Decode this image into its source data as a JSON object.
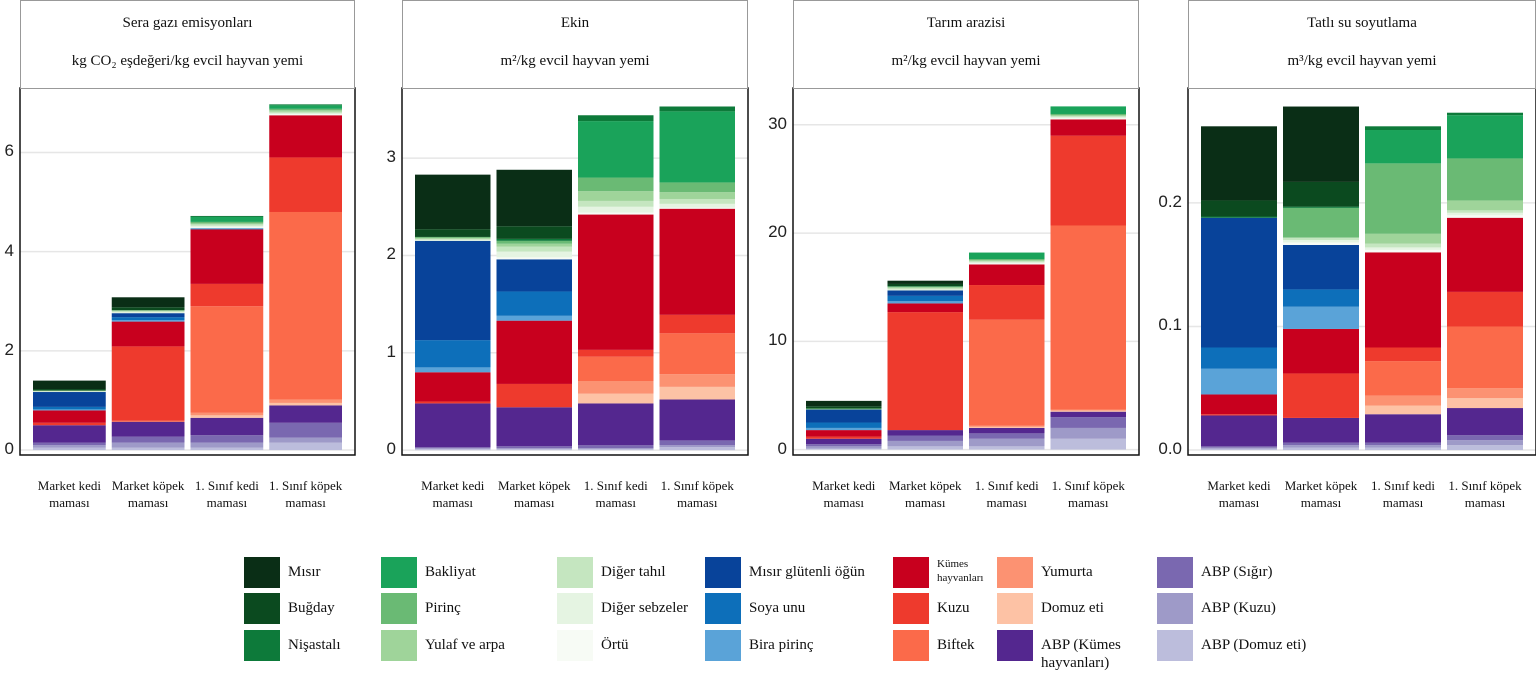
{
  "chart_data": [
    {
      "type": "bar",
      "stacked": true,
      "title": "Sera gazı emisyonları",
      "subtitle": "kg CO₂ eşdeğeri/kg evcil hayvan yemi",
      "categories": [
        "Market kedi maması",
        "Market köpek maması",
        "1. Sınıf kedi maması",
        "1. Sınıf köpek maması"
      ],
      "ylim": [
        -0.1,
        7.3
      ],
      "yticks": [
        0,
        2,
        4,
        6
      ],
      "grid": true,
      "series": [
        {
          "values": [
            0.17,
            0.2,
            0,
            0
          ]
        },
        {
          "values": [
            0.03,
            0.06,
            0,
            0
          ]
        },
        {
          "values": [
            0,
            0,
            0.02,
            0.02
          ]
        },
        {
          "values": [
            0,
            0,
            0.1,
            0.07
          ]
        },
        {
          "values": [
            0,
            0.01,
            0.03,
            0.03
          ]
        },
        {
          "values": [
            0.01,
            0.01,
            0.02,
            0.03
          ]
        },
        {
          "values": [
            0.01,
            0.02,
            0.03,
            0.03
          ]
        },
        {
          "values": [
            0.01,
            0.02,
            0.03,
            0.02
          ]
        },
        {
          "values": [
            0,
            0,
            0.02,
            0.02
          ]
        },
        {
          "values": [
            0.3,
            0.08,
            0,
            0
          ]
        },
        {
          "values": [
            0.05,
            0.06,
            0.02,
            0
          ]
        },
        {
          "values": [
            0.02,
            0.03,
            0,
            0
          ]
        },
        {
          "values": [
            0.25,
            0.5,
            1.1,
            0.85
          ]
        },
        {
          "values": [
            0.05,
            1.5,
            0.45,
            1.1
          ]
        },
        {
          "values": [
            0,
            0.02,
            2.15,
            3.78
          ]
        },
        {
          "values": [
            0,
            0,
            0.05,
            0.07
          ]
        },
        {
          "values": [
            0,
            0,
            0.05,
            0.05
          ]
        },
        {
          "values": [
            0.35,
            0.3,
            0.35,
            0.35
          ]
        },
        {
          "values": [
            0.05,
            0.12,
            0.15,
            0.3
          ]
        },
        {
          "values": [
            0.05,
            0.1,
            0.1,
            0.1
          ]
        },
        {
          "values": [
            0.05,
            0.05,
            0.05,
            0.15
          ]
        }
      ]
    },
    {
      "type": "bar",
      "stacked": true,
      "title": "Ekin",
      "subtitle": "m²/kg evcil hayvan yemi",
      "categories": [
        "Market kedi maması",
        "Market köpek maması",
        "1. Sınıf kedi maması",
        "1. Sınıf köpek maması"
      ],
      "ylim": [
        -0.05,
        3.72
      ],
      "yticks": [
        0,
        1,
        2,
        3
      ],
      "grid": true,
      "series": [
        {
          "values": [
            0.56,
            0.58,
            0,
            0
          ]
        },
        {
          "values": [
            0.08,
            0.13,
            0,
            0
          ]
        },
        {
          "values": [
            0,
            0.02,
            0.06,
            0.05
          ]
        },
        {
          "values": [
            0,
            0,
            0.58,
            0.73
          ]
        },
        {
          "values": [
            0.01,
            0.03,
            0.14,
            0.1
          ]
        },
        {
          "values": [
            0.01,
            0.03,
            0.1,
            0.07
          ]
        },
        {
          "values": [
            0.01,
            0.05,
            0.06,
            0.05
          ]
        },
        {
          "values": [
            0.01,
            0.06,
            0.06,
            0.04
          ]
        },
        {
          "values": [
            0,
            0.02,
            0.02,
            0.01
          ]
        },
        {
          "values": [
            1.02,
            0.33,
            0,
            0
          ]
        },
        {
          "values": [
            0.28,
            0.25,
            0,
            0
          ]
        },
        {
          "values": [
            0.05,
            0.05,
            0,
            0
          ]
        },
        {
          "values": [
            0.3,
            0.65,
            1.39,
            1.09
          ]
        },
        {
          "values": [
            0.02,
            0.24,
            0.07,
            0.19
          ]
        },
        {
          "values": [
            0,
            0,
            0.25,
            0.42
          ]
        },
        {
          "values": [
            0,
            0,
            0.13,
            0.13
          ]
        },
        {
          "values": [
            0,
            0,
            0.1,
            0.13
          ]
        },
        {
          "values": [
            0.45,
            0.4,
            0.43,
            0.42
          ]
        },
        {
          "values": [
            0.01,
            0.02,
            0.03,
            0.05
          ]
        },
        {
          "values": [
            0.01,
            0.01,
            0.01,
            0.02
          ]
        },
        {
          "values": [
            0.01,
            0.01,
            0.01,
            0.03
          ]
        }
      ]
    },
    {
      "type": "bar",
      "stacked": true,
      "title": "Tarım arazisi",
      "subtitle": "m²/kg evcil hayvan yemi",
      "categories": [
        "Market kedi maması",
        "Market köpek maması",
        "1. Sınıf kedi maması",
        "1. Sınıf köpek maması"
      ],
      "ylim": [
        -0.5,
        33.4
      ],
      "yticks": [
        0,
        10,
        20,
        30
      ],
      "grid": true,
      "series": [
        {
          "values": [
            0.5,
            0.3,
            0,
            0
          ]
        },
        {
          "values": [
            0.2,
            0.2,
            0,
            0
          ]
        },
        {
          "values": [
            0,
            0.05,
            0,
            0
          ]
        },
        {
          "values": [
            0,
            0,
            0.6,
            0.7
          ]
        },
        {
          "values": [
            0.05,
            0.05,
            0.1,
            0.1
          ]
        },
        {
          "values": [
            0.05,
            0.1,
            0.1,
            0.1
          ]
        },
        {
          "values": [
            0,
            0.1,
            0.1,
            0.1
          ]
        },
        {
          "values": [
            0,
            0.1,
            0.1,
            0.1
          ]
        },
        {
          "values": [
            0,
            0,
            0.1,
            0.1
          ]
        },
        {
          "values": [
            1.2,
            0.5,
            0,
            0
          ]
        },
        {
          "values": [
            0.5,
            0.5,
            0,
            0
          ]
        },
        {
          "values": [
            0.2,
            0.2,
            0,
            0
          ]
        },
        {
          "values": [
            0.6,
            0.8,
            1.9,
            1.5
          ]
        },
        {
          "values": [
            0.2,
            10.9,
            3.2,
            8.3
          ]
        },
        {
          "values": [
            0,
            0,
            9.8,
            17.0
          ]
        },
        {
          "values": [
            0,
            0,
            0.1,
            0.1
          ]
        },
        {
          "values": [
            0,
            0,
            0.1,
            0.1
          ]
        },
        {
          "values": [
            0.5,
            0.5,
            0.5,
            0.5
          ]
        },
        {
          "values": [
            0.2,
            0.5,
            0.5,
            1.0
          ]
        },
        {
          "values": [
            0.2,
            0.5,
            0.7,
            1.0
          ]
        },
        {
          "values": [
            0.1,
            0.3,
            0.3,
            1.0
          ]
        }
      ]
    },
    {
      "type": "bar",
      "stacked": true,
      "title": "Tatlı su soyutlama",
      "subtitle": "m³/kg evcil hayvan yemi",
      "categories": [
        "Market kedi maması",
        "Market köpek maması",
        "1. Sınıf kedi maması",
        "1. Sınıf köpek maması"
      ],
      "ylim": [
        -0.004,
        0.293
      ],
      "yticks": [
        {
          "value": 0,
          "label": "0.0"
        },
        0.1,
        0.2
      ],
      "grid": true,
      "series": [
        {
          "values": [
            0.06,
            0.061,
            0,
            0
          ]
        },
        {
          "values": [
            0.013,
            0.02,
            0,
            0
          ]
        },
        {
          "values": [
            0.001,
            0.001,
            0.003,
            0.002
          ]
        },
        {
          "values": [
            0,
            0,
            0.027,
            0.035
          ]
        },
        {
          "values": [
            0,
            0.024,
            0.057,
            0.034
          ]
        },
        {
          "values": [
            0,
            0,
            0.008,
            0.008
          ]
        },
        {
          "values": [
            0,
            0.002,
            0.003,
            0.002
          ]
        },
        {
          "values": [
            0,
            0.002,
            0.002,
            0.002
          ]
        },
        {
          "values": [
            0,
            0.002,
            0.002,
            0.002
          ]
        },
        {
          "values": [
            0.105,
            0.036,
            0,
            0
          ]
        },
        {
          "values": [
            0.017,
            0.014,
            0,
            0
          ]
        },
        {
          "values": [
            0.021,
            0.018,
            0,
            0
          ]
        },
        {
          "values": [
            0.016,
            0.036,
            0.077,
            0.06
          ]
        },
        {
          "values": [
            0.001,
            0.036,
            0.011,
            0.028
          ]
        },
        {
          "values": [
            0,
            0,
            0.028,
            0.05
          ]
        },
        {
          "values": [
            0,
            0,
            0.008,
            0.008
          ]
        },
        {
          "values": [
            0,
            0,
            0.007,
            0.008
          ]
        },
        {
          "values": [
            0.025,
            0.02,
            0.023,
            0.022
          ]
        },
        {
          "values": [
            0.001,
            0.002,
            0.002,
            0.004
          ]
        },
        {
          "values": [
            0.001,
            0.002,
            0.002,
            0.004
          ]
        },
        {
          "values": [
            0.001,
            0.002,
            0.002,
            0.004
          ]
        }
      ]
    }
  ],
  "legend": {
    "items": [
      {
        "name": "Mısır",
        "color": "#0a2e16"
      },
      {
        "name": "Buğday",
        "color": "#0b4a1f"
      },
      {
        "name": "Nişastalı",
        "color": "#0d7a3a"
      },
      {
        "name": "Bakliyat",
        "color": "#1aa35a"
      },
      {
        "name": "Pirinç",
        "color": "#6aba74"
      },
      {
        "name": "Yulaf ve arpa",
        "color": "#9fd49a"
      },
      {
        "name": "Diğer tahıl",
        "color": "#c5e6c0"
      },
      {
        "name": "Diğer sebzeler",
        "color": "#e5f4e2"
      },
      {
        "name": "Örtü",
        "color": "#f7fbf5"
      },
      {
        "name": "Mısır glütenli öğün",
        "color": "#08439a"
      },
      {
        "name": "Soya unu",
        "color": "#0d6fba"
      },
      {
        "name": "Bira pirinç",
        "color": "#5aa3d8"
      },
      {
        "name": "Kümes hayvanları",
        "color": "#c8001e"
      },
      {
        "name": "Kuzu",
        "color": "#ee3a2d"
      },
      {
        "name": "Biftek",
        "color": "#fb6a4a"
      },
      {
        "name": "Yumurta",
        "color": "#fc9272"
      },
      {
        "name": "Domuz eti",
        "color": "#fdc2a5"
      },
      {
        "name": "ABP (Kümes hayvanları)",
        "color": "#54278f"
      },
      {
        "name": "ABP (Sığır)",
        "color": "#7a68b0"
      },
      {
        "name": "ABP (Kuzu)",
        "color": "#9e9ac8"
      },
      {
        "name": "ABP (Domuz eti)",
        "color": "#bcbddc"
      }
    ]
  }
}
